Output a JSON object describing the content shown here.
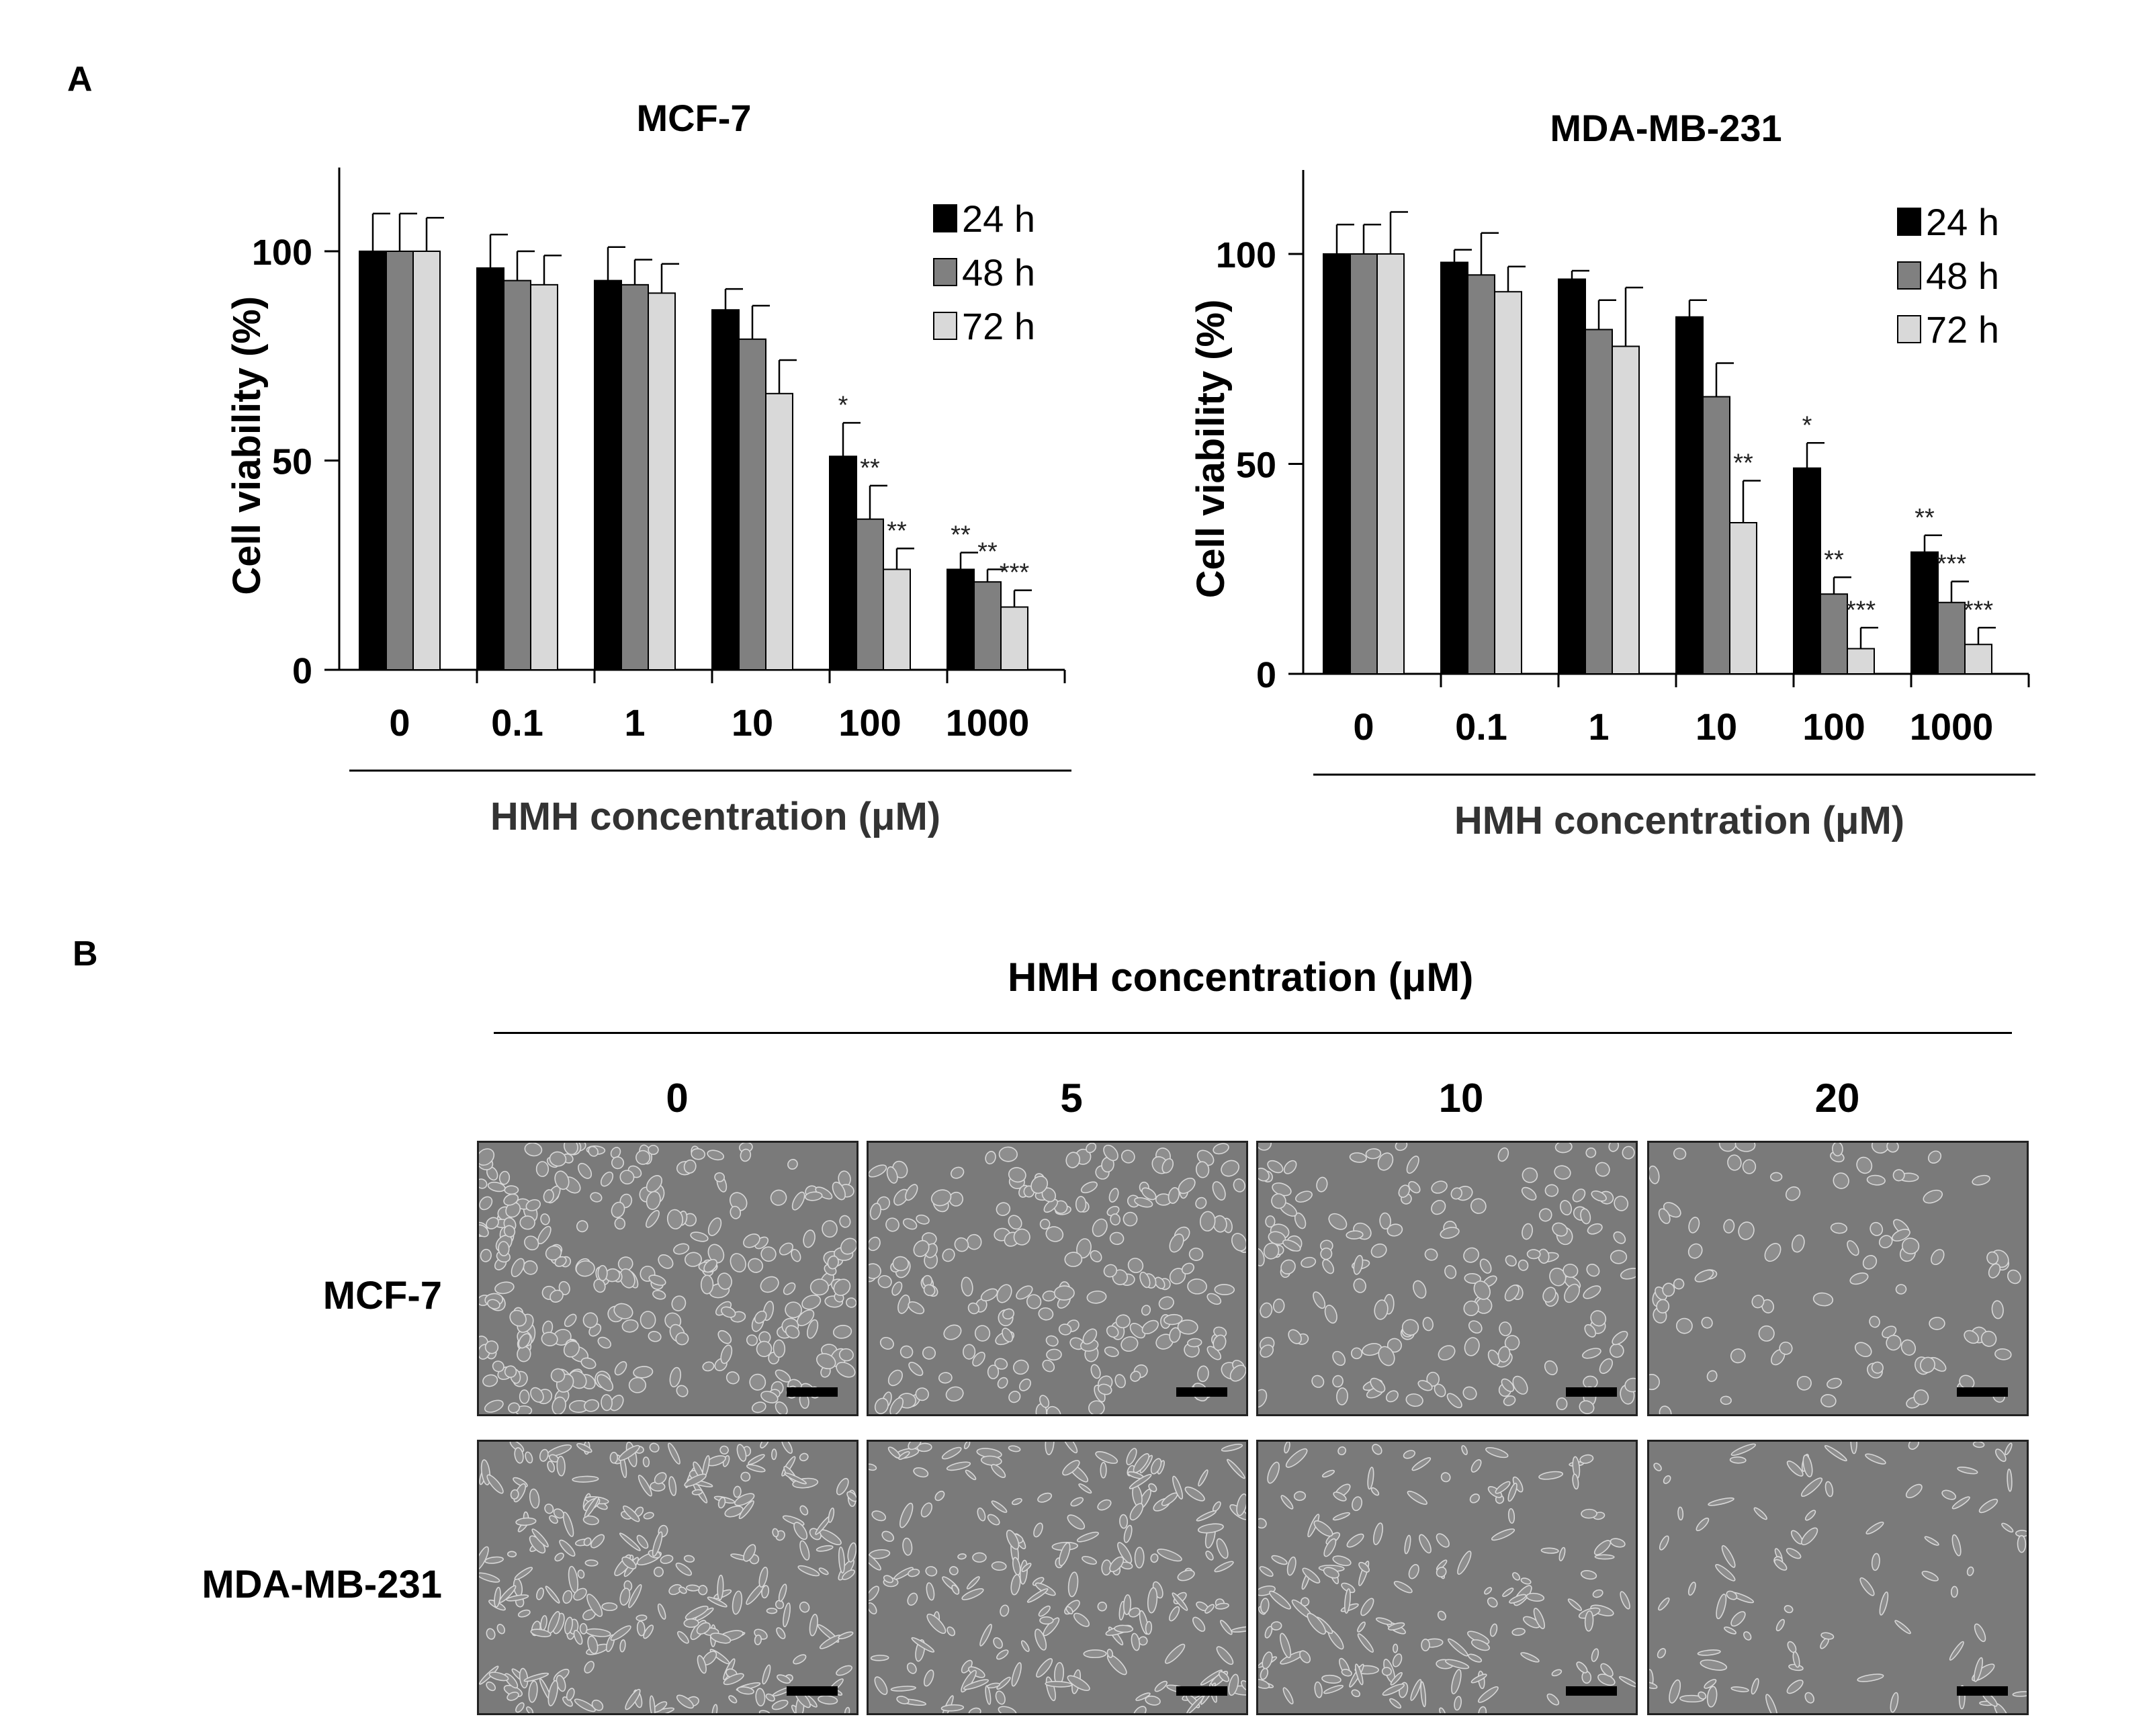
{
  "panels": {
    "a": "A",
    "b": "B"
  },
  "chart_data": [
    {
      "type": "bar",
      "title": "MCF-7",
      "xlabel": "HMH concentration (μM)",
      "ylabel": "Cell viability (%)",
      "ylim": [
        0,
        120
      ],
      "yticks": [
        0,
        50,
        100
      ],
      "categories": [
        "0",
        "0.1",
        "1",
        "10",
        "100",
        "1000"
      ],
      "legend_position": "top-right",
      "series": [
        {
          "name": "24 h",
          "color": "#000000",
          "values": [
            100,
            96,
            93,
            86,
            51,
            24
          ],
          "errors": [
            9,
            8,
            8,
            5,
            8,
            4
          ],
          "annotations": [
            "",
            "",
            "",
            "",
            "*",
            "**"
          ]
        },
        {
          "name": "48 h",
          "color": "#808080",
          "values": [
            100,
            93,
            92,
            79,
            36,
            21
          ],
          "errors": [
            9,
            7,
            6,
            8,
            8,
            3
          ],
          "annotations": [
            "",
            "",
            "",
            "",
            "**",
            "**"
          ]
        },
        {
          "name": "72 h",
          "color": "#d9d9d9",
          "values": [
            100,
            92,
            90,
            66,
            24,
            15
          ],
          "errors": [
            8,
            7,
            7,
            8,
            5,
            4
          ],
          "annotations": [
            "",
            "",
            "",
            "",
            "**",
            "***"
          ]
        }
      ]
    },
    {
      "type": "bar",
      "title": "MDA-MB-231",
      "xlabel": "HMH concentration (μM)",
      "ylabel": "Cell viability (%)",
      "ylim": [
        0,
        120
      ],
      "yticks": [
        0,
        50,
        100
      ],
      "categories": [
        "0",
        "0.1",
        "1",
        "10",
        "100",
        "1000"
      ],
      "legend_position": "top-right",
      "series": [
        {
          "name": "24 h",
          "color": "#000000",
          "values": [
            100,
            98,
            94,
            85,
            49,
            29
          ],
          "errors": [
            7,
            3,
            2,
            4,
            6,
            4
          ],
          "annotations": [
            "",
            "",
            "",
            "",
            "*",
            "**"
          ]
        },
        {
          "name": "48 h",
          "color": "#808080",
          "values": [
            100,
            95,
            82,
            66,
            19,
            17
          ],
          "errors": [
            7,
            10,
            7,
            8,
            4,
            5
          ],
          "annotations": [
            "",
            "",
            "",
            "",
            "**",
            "***"
          ]
        },
        {
          "name": "72 h",
          "color": "#d9d9d9",
          "values": [
            100,
            91,
            78,
            36,
            6,
            7
          ],
          "errors": [
            10,
            6,
            14,
            10,
            5,
            4
          ],
          "annotations": [
            "",
            "",
            "",
            "**",
            "***",
            "***"
          ]
        }
      ]
    }
  ],
  "micrographs": {
    "title": "HMH concentration (μM)",
    "columns": [
      "0",
      "5",
      "10",
      "20"
    ],
    "rows": [
      "MCF-7",
      "MDA-MB-231"
    ]
  }
}
